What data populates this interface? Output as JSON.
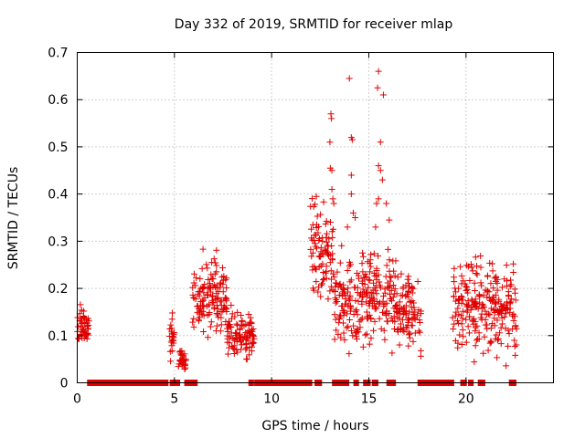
{
  "chart_data": {
    "type": "scatter",
    "title": "Day 332 of 2019, SRMTID for receiver mlap",
    "xlabel": "GPS time / hours",
    "ylabel": "SRMTID / TECUs",
    "xlim": [
      0,
      24.5
    ],
    "ylim": [
      0,
      0.7
    ],
    "xticks": [
      0,
      5,
      10,
      15,
      20
    ],
    "xtick_labels": [
      "0",
      "5",
      "10",
      "15",
      "20"
    ],
    "yticks": [
      0,
      0.1,
      0.2,
      0.3,
      0.4,
      0.5,
      0.6,
      0.7
    ],
    "ytick_labels": [
      "0",
      "0.1",
      "0.2",
      "0.3",
      "0.4",
      "0.5",
      "0.6",
      "0.7"
    ],
    "grid": true,
    "marker": "+",
    "series_color": "#e00000",
    "segments": [
      {
        "x_start": 0.0,
        "x_end": 0.6,
        "y_min": 0.06,
        "y_max": 0.18
      },
      {
        "x_start": 4.7,
        "x_end": 5.0,
        "y_min": 0.03,
        "y_max": 0.16
      },
      {
        "x_start": 5.2,
        "x_end": 5.6,
        "y_min": 0.02,
        "y_max": 0.08
      },
      {
        "x_start": 5.9,
        "x_end": 7.2,
        "y_min": 0.08,
        "y_max": 0.29
      },
      {
        "x_start": 7.2,
        "x_end": 7.7,
        "y_min": 0.1,
        "y_max": 0.26
      },
      {
        "x_start": 7.7,
        "x_end": 9.1,
        "y_min": 0.05,
        "y_max": 0.16
      },
      {
        "x_start": 12.0,
        "x_end": 13.2,
        "y_min": 0.16,
        "y_max": 0.4
      },
      {
        "x_start": 13.2,
        "x_end": 14.8,
        "y_min": 0.06,
        "y_max": 0.3
      },
      {
        "x_start": 14.8,
        "x_end": 16.4,
        "y_min": 0.06,
        "y_max": 0.3
      },
      {
        "x_start": 16.4,
        "x_end": 17.7,
        "y_min": 0.06,
        "y_max": 0.24
      },
      {
        "x_start": 19.3,
        "x_end": 20.5,
        "y_min": 0.05,
        "y_max": 0.28
      },
      {
        "x_start": 20.5,
        "x_end": 21.8,
        "y_min": 0.04,
        "y_max": 0.28
      },
      {
        "x_start": 21.8,
        "x_end": 22.6,
        "y_min": 0.05,
        "y_max": 0.25
      }
    ],
    "outliers": [
      [
        13.05,
        0.57
      ],
      [
        13.08,
        0.56
      ],
      [
        13.0,
        0.51
      ],
      [
        13.02,
        0.455
      ],
      [
        13.1,
        0.45
      ],
      [
        13.1,
        0.41
      ],
      [
        13.15,
        0.39
      ],
      [
        13.2,
        0.38
      ],
      [
        12.3,
        0.395
      ],
      [
        14.0,
        0.645
      ],
      [
        14.1,
        0.52
      ],
      [
        14.15,
        0.515
      ],
      [
        14.1,
        0.44
      ],
      [
        14.1,
        0.4
      ],
      [
        14.2,
        0.36
      ],
      [
        14.3,
        0.35
      ],
      [
        13.9,
        0.33
      ],
      [
        15.5,
        0.66
      ],
      [
        15.45,
        0.625
      ],
      [
        15.75,
        0.61
      ],
      [
        15.6,
        0.51
      ],
      [
        15.5,
        0.46
      ],
      [
        15.6,
        0.45
      ],
      [
        15.7,
        0.43
      ],
      [
        15.5,
        0.39
      ],
      [
        15.4,
        0.38
      ],
      [
        16.05,
        0.345
      ],
      [
        15.35,
        0.33
      ],
      [
        15.9,
        0.38
      ]
    ],
    "zero_segments": [
      [
        0.6,
        4.6
      ],
      [
        4.85,
        5.2
      ],
      [
        5.6,
        5.9
      ],
      [
        6.0,
        6.1
      ],
      [
        8.9,
        9.0
      ],
      [
        9.2,
        12.0
      ],
      [
        12.3,
        12.5
      ],
      [
        13.2,
        13.9
      ],
      [
        14.3,
        14.4
      ],
      [
        14.8,
        15.0
      ],
      [
        15.25,
        15.4
      ],
      [
        16.0,
        16.3
      ],
      [
        17.6,
        19.3
      ],
      [
        19.8,
        19.95
      ],
      [
        20.2,
        20.3
      ],
      [
        20.7,
        20.9
      ],
      [
        22.3,
        22.5
      ]
    ]
  }
}
